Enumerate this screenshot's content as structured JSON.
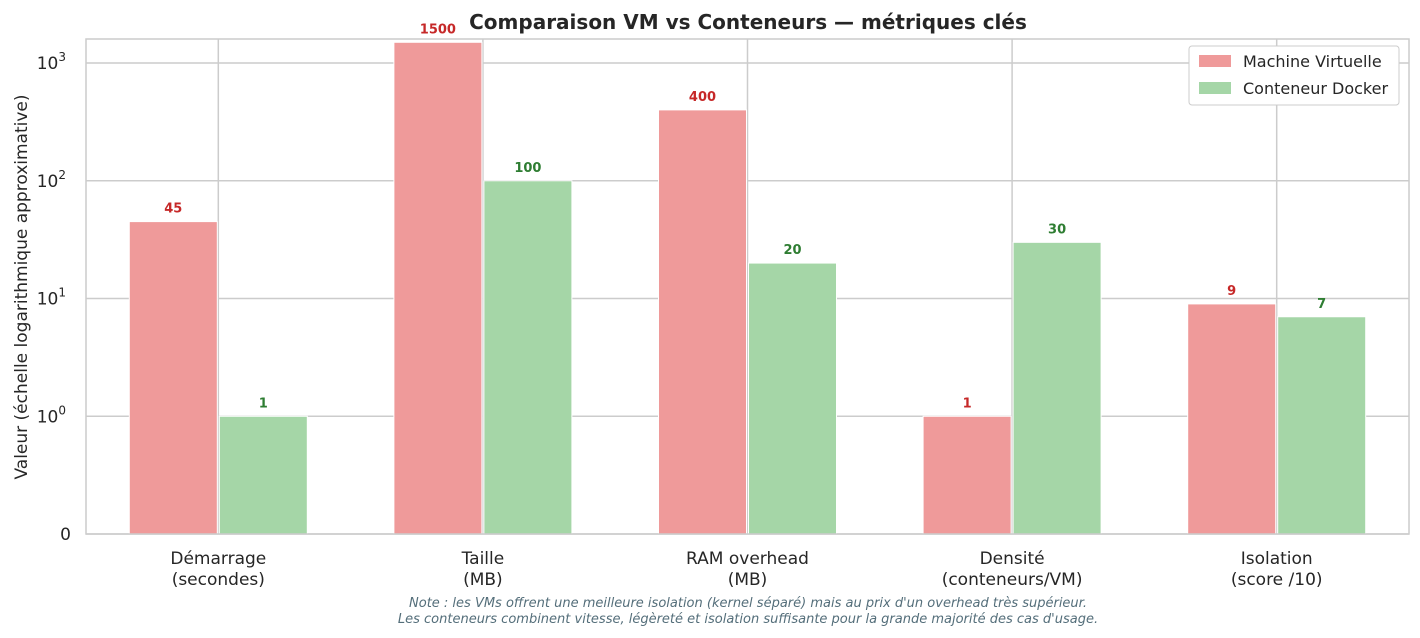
{
  "chart_data": {
    "type": "bar",
    "title": "Comparaison VM vs Conteneurs — métriques clés",
    "xlabel": "",
    "ylabel": "Valeur (échelle logarithmique approximative)",
    "yscale": "symlog",
    "ylim_top": 1600,
    "yticks": [
      {
        "value": 0,
        "base": "0",
        "exp": ""
      },
      {
        "value": 1,
        "base": "10",
        "exp": "0"
      },
      {
        "value": 10,
        "base": "10",
        "exp": "1"
      },
      {
        "value": 100,
        "base": "10",
        "exp": "2"
      },
      {
        "value": 1000,
        "base": "10",
        "exp": "3"
      }
    ],
    "grid": true,
    "legend_position": "top-right",
    "categories": [
      [
        "Démarrage",
        "(secondes)"
      ],
      [
        "Taille",
        "(MB)"
      ],
      [
        "RAM overhead",
        "(MB)"
      ],
      [
        "Densité",
        "(conteneurs/VM)"
      ],
      [
        "Isolation",
        "(score /10)"
      ]
    ],
    "series": [
      {
        "name": "Machine Virtuelle",
        "values": [
          45,
          1500,
          400,
          1,
          9
        ],
        "labels": [
          "45",
          "1500",
          "400",
          "1",
          "9"
        ],
        "color": "#ef9a9a",
        "label_color": "#c62828"
      },
      {
        "name": "Conteneur Docker",
        "values": [
          1,
          100,
          20,
          30,
          7
        ],
        "labels": [
          "1",
          "100",
          "20",
          "30",
          "7"
        ],
        "color": "#a5d6a7",
        "label_color": "#2e7d32"
      }
    ],
    "note": [
      "Note : les VMs offrent une meilleure isolation (kernel séparé) mais au prix d'un overhead très supérieur.",
      "Les conteneurs combinent vitesse, légèreté et isolation suffisante pour la grande majorité des cas d'usage."
    ]
  }
}
